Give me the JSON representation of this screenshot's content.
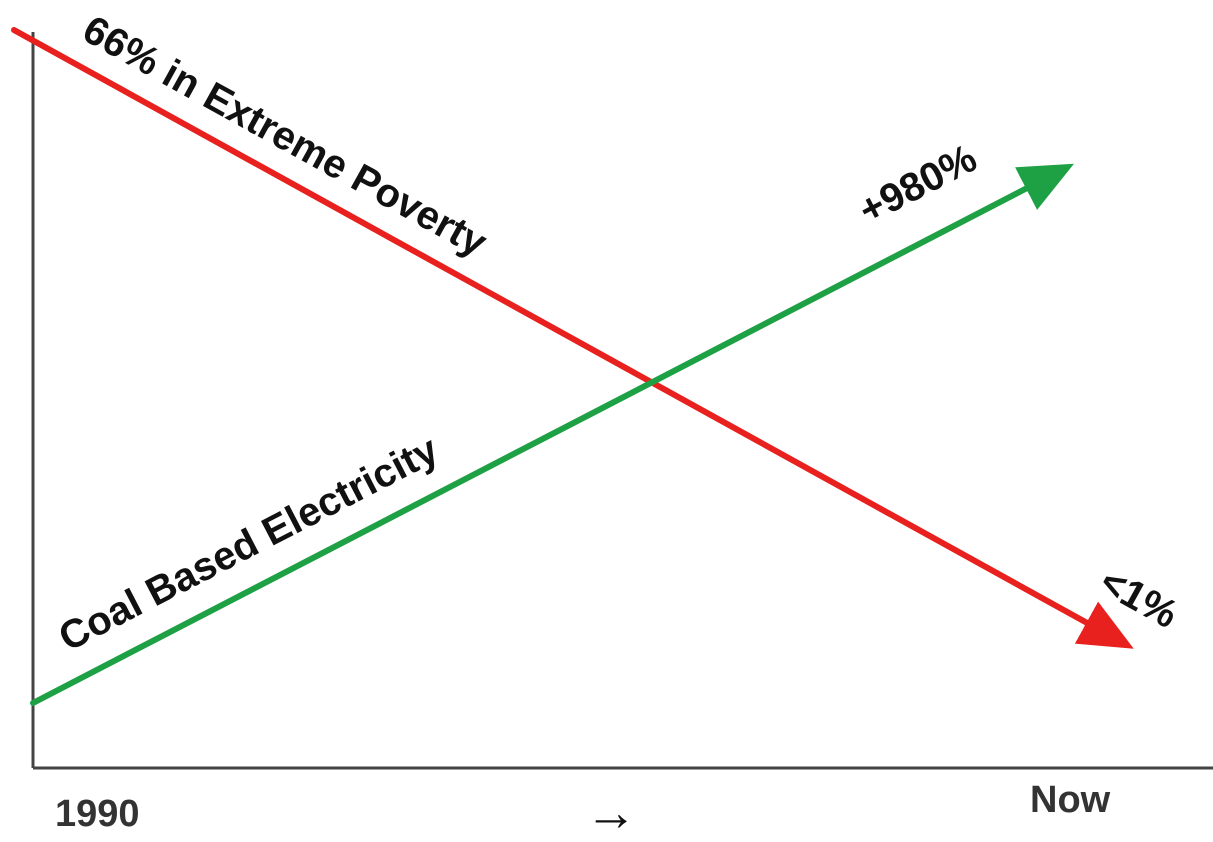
{
  "chart_data": {
    "type": "line",
    "title": "",
    "xlabel": "",
    "ylabel": "",
    "x_ticks": [
      "1990",
      "Now"
    ],
    "x_direction_glyph": "→",
    "grid": false,
    "legend": "none",
    "series": [
      {
        "key": "poverty",
        "name": "66% in Extreme Poverty",
        "start_label": "66% in Extreme Poverty",
        "end_label": "<1%",
        "color": "#e8201e",
        "values": [
          1,
          0
        ]
      },
      {
        "key": "coal",
        "name": "Coal Based Electricity",
        "start_label": "Coal Based Electricity",
        "end_label": "+980%",
        "color": "#1ea045",
        "values": [
          0.1,
          1
        ]
      }
    ]
  },
  "colors": {
    "axis": "#444444",
    "poverty": "#e8201e",
    "coal": "#1ea045"
  }
}
